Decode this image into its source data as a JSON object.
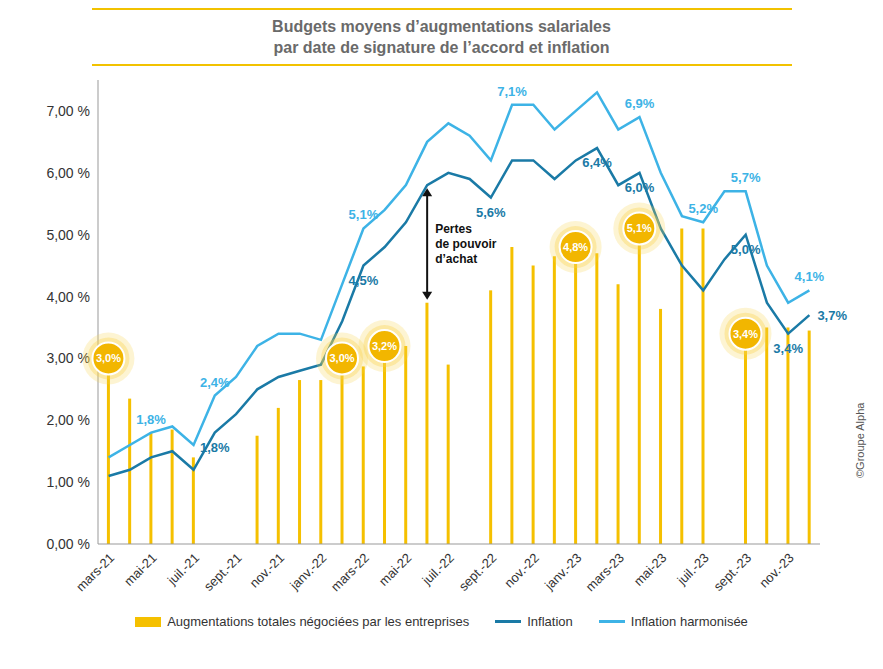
{
  "chart_data": {
    "type": "bar",
    "title": "Budgets moyens d’augmentations salariales\npar date de signature de l’accord et inflation",
    "credit": "©Groupe Alpha",
    "categories": [
      "mars-21",
      null,
      "mai-21",
      null,
      "juil.-21",
      null,
      "sept.-21",
      null,
      "nov.-21",
      null,
      "janv.-22",
      null,
      "mars-22",
      null,
      "mai-22",
      null,
      "juil.-22",
      null,
      "sept.-22",
      null,
      "nov.-22",
      null,
      "janv.-23",
      null,
      "mars-23",
      null,
      "mai-23",
      null,
      "juil.-23",
      null,
      "sept.-23",
      null,
      "nov.-23",
      null
    ],
    "series": [
      {
        "name": "Augmentations totales négociées par les entreprises",
        "type": "bar",
        "color": "#F5C000",
        "values": [
          3.0,
          2.35,
          1.8,
          1.85,
          1.4,
          null,
          null,
          1.75,
          2.2,
          2.65,
          2.65,
          3.0,
          2.87,
          3.2,
          3.2,
          3.9,
          2.9,
          null,
          4.1,
          4.8,
          4.5,
          4.65,
          4.8,
          4.7,
          4.2,
          5.1,
          3.8,
          5.1,
          5.1,
          null,
          3.4,
          3.5,
          3.5,
          3.45
        ],
        "value_labels": [
          "3,0%",
          null,
          null,
          null,
          null,
          null,
          null,
          null,
          null,
          null,
          null,
          "3,0%",
          null,
          "3,2%",
          null,
          null,
          null,
          null,
          null,
          null,
          null,
          null,
          "4,8%",
          null,
          null,
          "5,1%",
          null,
          null,
          null,
          null,
          "3,4%",
          null,
          null,
          null
        ]
      },
      {
        "name": "Inflation",
        "type": "line",
        "color": "#1A7AA6",
        "values": [
          1.1,
          1.2,
          1.4,
          1.5,
          1.2,
          1.8,
          2.1,
          2.5,
          2.7,
          2.8,
          2.9,
          3.6,
          4.5,
          4.8,
          5.2,
          5.8,
          6.0,
          5.9,
          5.6,
          6.2,
          6.2,
          5.9,
          6.2,
          6.4,
          5.8,
          6.0,
          5.1,
          4.5,
          4.1,
          4.6,
          5.0,
          3.9,
          3.4,
          3.7
        ],
        "value_labels": [
          null,
          null,
          null,
          null,
          null,
          "1,8%",
          null,
          null,
          null,
          null,
          null,
          null,
          "4,5%",
          null,
          null,
          null,
          null,
          null,
          "5,6%",
          null,
          null,
          null,
          null,
          "6,4%",
          null,
          "6,0%",
          null,
          null,
          null,
          null,
          "5,0%",
          null,
          "3,4%",
          "3,7%"
        ]
      },
      {
        "name": "Inflation harmonisée",
        "type": "line",
        "color": "#3DB3E6",
        "values": [
          1.4,
          1.6,
          1.8,
          1.9,
          1.6,
          2.4,
          2.7,
          3.2,
          3.4,
          3.4,
          3.3,
          4.2,
          5.1,
          5.4,
          5.8,
          6.5,
          6.8,
          6.6,
          6.2,
          7.1,
          7.1,
          6.7,
          7.0,
          7.3,
          6.7,
          6.9,
          6.0,
          5.3,
          5.2,
          5.7,
          5.7,
          4.5,
          3.9,
          4.1
        ],
        "value_labels": [
          null,
          null,
          "1,8%",
          null,
          null,
          "2,4%",
          null,
          null,
          null,
          null,
          null,
          null,
          "5,1%",
          null,
          null,
          null,
          null,
          null,
          null,
          "7,1%",
          null,
          null,
          null,
          null,
          null,
          "6,9%",
          null,
          null,
          "5,2%",
          null,
          "5,7%",
          null,
          null,
          "4,1%"
        ]
      }
    ],
    "annotations": [
      {
        "text": "Pertes\nde pouvoir\nd’achat"
      }
    ],
    "ylim": [
      0,
      7.5
    ],
    "yticks": [
      {
        "value": 0,
        "label": "0,00 %"
      },
      {
        "value": 1,
        "label": "1,00 %"
      },
      {
        "value": 2,
        "label": "2,00 %"
      },
      {
        "value": 3,
        "label": "3,00 %"
      },
      {
        "value": 4,
        "label": "4,00 %"
      },
      {
        "value": 5,
        "label": "5,00 %"
      },
      {
        "value": 6,
        "label": "6,00 %"
      },
      {
        "value": 7,
        "label": "7,00 %"
      }
    ],
    "grid": false,
    "legend": "bottom",
    "data_labels": true
  }
}
